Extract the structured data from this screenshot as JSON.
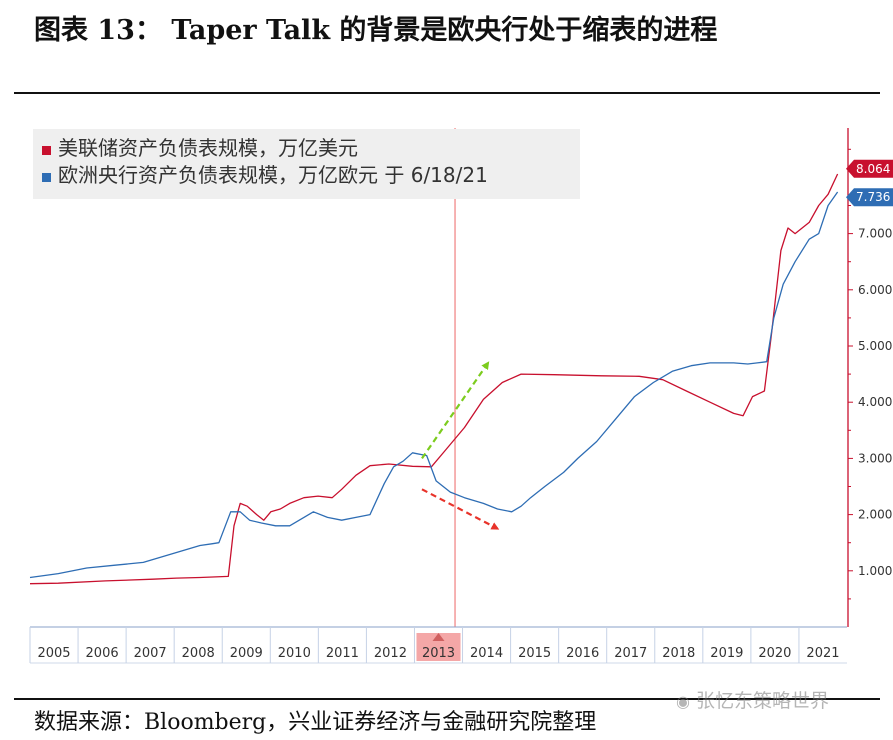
{
  "title": "图表 13： Taper Talk 的背景是欧央行处于缩表的进程",
  "source": "数据来源：Bloomberg，兴业证券经济与金融研究院整理",
  "watermark": "张忆东策略世界",
  "colors": {
    "fed": "#c8102e",
    "ecb": "#2e6db4",
    "green_arrow": "#7ccc1e",
    "red_arrow": "#e8332a",
    "marker": "#f08080",
    "axis": "#c8102e"
  },
  "chart_data": {
    "type": "line",
    "legend_position": "top-left",
    "x_ticks": [
      "2005",
      "2006",
      "2007",
      "2008",
      "2009",
      "2010",
      "2011",
      "2012",
      "2013",
      "2014",
      "2015",
      "2016",
      "2017",
      "2018",
      "2019",
      "2020",
      "2021"
    ],
    "highlight_year": "2013",
    "y_ticks": [
      "1.000",
      "2.000",
      "3.000",
      "4.000",
      "5.000",
      "6.000",
      "7.000"
    ],
    "ylim": [
      0,
      8.6
    ],
    "xlim": [
      2004.4,
      2021.7
    ],
    "vertical_marker_x": 2013.4,
    "last_value_labels": [
      {
        "series": 0,
        "text": "8.064",
        "y": 8.064
      },
      {
        "series": 1,
        "text": "7.736",
        "y": 7.736
      }
    ],
    "series": [
      {
        "name": "美联储资产负债表规模，万亿美元",
        "points": [
          [
            2004.4,
            0.77
          ],
          [
            2005.0,
            0.78
          ],
          [
            2006.0,
            0.82
          ],
          [
            2007.0,
            0.85
          ],
          [
            2007.5,
            0.87
          ],
          [
            2008.0,
            0.88
          ],
          [
            2008.6,
            0.9
          ],
          [
            2008.72,
            1.8
          ],
          [
            2008.85,
            2.2
          ],
          [
            2009.0,
            2.15
          ],
          [
            2009.2,
            2.0
          ],
          [
            2009.35,
            1.9
          ],
          [
            2009.5,
            2.05
          ],
          [
            2009.7,
            2.1
          ],
          [
            2009.9,
            2.2
          ],
          [
            2010.2,
            2.3
          ],
          [
            2010.5,
            2.33
          ],
          [
            2010.8,
            2.3
          ],
          [
            2011.0,
            2.45
          ],
          [
            2011.3,
            2.7
          ],
          [
            2011.6,
            2.87
          ],
          [
            2012.0,
            2.9
          ],
          [
            2012.5,
            2.86
          ],
          [
            2012.9,
            2.85
          ],
          [
            2013.2,
            3.15
          ],
          [
            2013.6,
            3.55
          ],
          [
            2014.0,
            4.05
          ],
          [
            2014.4,
            4.35
          ],
          [
            2014.8,
            4.5
          ],
          [
            2015.5,
            4.49
          ],
          [
            2016.5,
            4.47
          ],
          [
            2017.3,
            4.46
          ],
          [
            2017.8,
            4.4
          ],
          [
            2018.3,
            4.2
          ],
          [
            2018.8,
            4.0
          ],
          [
            2019.3,
            3.8
          ],
          [
            2019.5,
            3.76
          ],
          [
            2019.7,
            4.1
          ],
          [
            2019.95,
            4.2
          ],
          [
            2020.1,
            5.2
          ],
          [
            2020.3,
            6.7
          ],
          [
            2020.45,
            7.1
          ],
          [
            2020.6,
            7.0
          ],
          [
            2020.9,
            7.2
          ],
          [
            2021.1,
            7.5
          ],
          [
            2021.3,
            7.7
          ],
          [
            2021.5,
            8.06
          ]
        ]
      },
      {
        "name": "欧洲央行资产负债表规模，万亿欧元 于 6/18/21",
        "points": [
          [
            2004.4,
            0.88
          ],
          [
            2005.0,
            0.95
          ],
          [
            2005.6,
            1.05
          ],
          [
            2006.2,
            1.1
          ],
          [
            2006.8,
            1.15
          ],
          [
            2007.2,
            1.25
          ],
          [
            2007.6,
            1.35
          ],
          [
            2008.0,
            1.45
          ],
          [
            2008.25,
            1.48
          ],
          [
            2008.4,
            1.5
          ],
          [
            2008.65,
            2.05
          ],
          [
            2008.85,
            2.05
          ],
          [
            2009.05,
            1.9
          ],
          [
            2009.3,
            1.85
          ],
          [
            2009.6,
            1.8
          ],
          [
            2009.9,
            1.8
          ],
          [
            2010.2,
            1.95
          ],
          [
            2010.4,
            2.05
          ],
          [
            2010.7,
            1.95
          ],
          [
            2011.0,
            1.9
          ],
          [
            2011.3,
            1.95
          ],
          [
            2011.6,
            2.0
          ],
          [
            2011.9,
            2.55
          ],
          [
            2012.1,
            2.85
          ],
          [
            2012.3,
            2.95
          ],
          [
            2012.5,
            3.1
          ],
          [
            2012.8,
            3.05
          ],
          [
            2013.0,
            2.6
          ],
          [
            2013.3,
            2.4
          ],
          [
            2013.6,
            2.3
          ],
          [
            2014.0,
            2.2
          ],
          [
            2014.3,
            2.1
          ],
          [
            2014.6,
            2.05
          ],
          [
            2014.8,
            2.15
          ],
          [
            2015.0,
            2.3
          ],
          [
            2015.3,
            2.5
          ],
          [
            2015.7,
            2.75
          ],
          [
            2016.0,
            3.0
          ],
          [
            2016.4,
            3.3
          ],
          [
            2016.8,
            3.7
          ],
          [
            2017.2,
            4.1
          ],
          [
            2017.6,
            4.35
          ],
          [
            2018.0,
            4.55
          ],
          [
            2018.4,
            4.65
          ],
          [
            2018.8,
            4.7
          ],
          [
            2019.3,
            4.7
          ],
          [
            2019.6,
            4.68
          ],
          [
            2019.8,
            4.7
          ],
          [
            2020.0,
            4.72
          ],
          [
            2020.15,
            5.5
          ],
          [
            2020.35,
            6.1
          ],
          [
            2020.6,
            6.5
          ],
          [
            2020.9,
            6.9
          ],
          [
            2021.1,
            7.0
          ],
          [
            2021.3,
            7.5
          ],
          [
            2021.5,
            7.74
          ]
        ]
      }
    ],
    "annotations": [
      {
        "type": "arrow",
        "color_key": "green_arrow",
        "from": [
          2012.7,
          3.0
        ],
        "to": [
          2014.1,
          4.7
        ]
      },
      {
        "type": "arrow",
        "color_key": "red_arrow",
        "from": [
          2012.7,
          2.45
        ],
        "to": [
          2014.3,
          1.75
        ]
      }
    ]
  }
}
